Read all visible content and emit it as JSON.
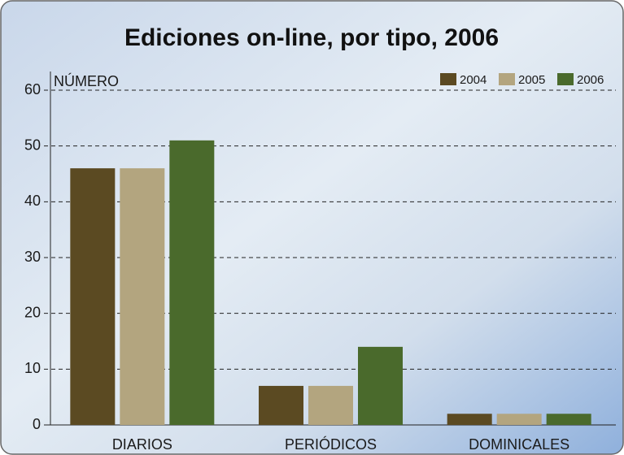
{
  "chart_data": {
    "type": "bar",
    "title": "Ediciones on-line, por tipo, 2006",
    "y_label": "NÚMERO",
    "categories": [
      "DIARIOS",
      "PERIÓDICOS",
      "DOMINICALES"
    ],
    "series": [
      {
        "name": "2004",
        "color": "#5b4a22",
        "values": [
          46,
          7,
          2
        ]
      },
      {
        "name": "2005",
        "color": "#b3a57f",
        "values": [
          46,
          7,
          2
        ]
      },
      {
        "name": "2006",
        "color": "#4a6a2c",
        "values": [
          51,
          14,
          2
        ]
      }
    ],
    "ylim": [
      0,
      60
    ],
    "yticks": [
      0,
      10,
      20,
      30,
      40,
      50,
      60
    ],
    "grid": true,
    "legend": "top-right"
  }
}
